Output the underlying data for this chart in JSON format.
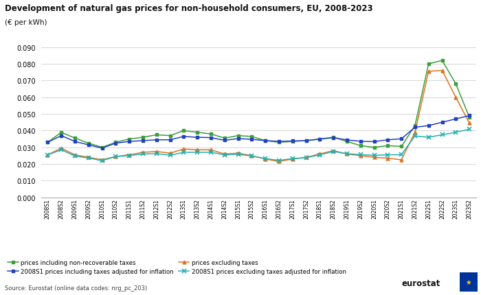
{
  "title": "Development of natural gas prices for non-household consumers, EU, 2008-2023",
  "subtitle": "(€ per kWh)",
  "source": "Source: Eurostat (online data codes: nrg_pc_203)",
  "x_labels": [
    "2008S1",
    "2008S2",
    "2009S1",
    "2009S2",
    "2010S1",
    "2010S2",
    "2011S1",
    "2011S2",
    "2012S1",
    "2012S2",
    "2013S1",
    "2013S2",
    "2014S1",
    "2014S2",
    "2015S1",
    "2015S2",
    "2016S1",
    "2016S2",
    "2017S1",
    "2017S2",
    "2018S1",
    "2018S2",
    "2019S1",
    "2019S2",
    "2020S1",
    "2020S2",
    "2021S1",
    "2021S2",
    "2022S1",
    "2022S2",
    "2023S1",
    "2023S2"
  ],
  "prices_incl_taxes": [
    0.033,
    0.039,
    0.0355,
    0.0325,
    0.03,
    0.033,
    0.035,
    0.036,
    0.0375,
    0.037,
    0.04,
    0.039,
    0.038,
    0.0355,
    0.037,
    0.0365,
    0.034,
    0.033,
    0.0335,
    0.034,
    0.035,
    0.036,
    0.0335,
    0.031,
    0.03,
    0.031,
    0.0305,
    0.043,
    0.08,
    0.082,
    0.068,
    0.048
  ],
  "prices_excl_taxes": [
    0.0255,
    0.0295,
    0.0255,
    0.024,
    0.0225,
    0.0245,
    0.0255,
    0.027,
    0.0275,
    0.0265,
    0.029,
    0.0285,
    0.0285,
    0.026,
    0.0265,
    0.025,
    0.023,
    0.0215,
    0.023,
    0.024,
    0.026,
    0.028,
    0.026,
    0.025,
    0.024,
    0.0235,
    0.0225,
    0.039,
    0.0755,
    0.076,
    0.06,
    0.0445
  ],
  "prices_incl_taxes_adj": [
    0.033,
    0.037,
    0.0335,
    0.0315,
    0.0295,
    0.0325,
    0.0335,
    0.034,
    0.0345,
    0.0345,
    0.0365,
    0.036,
    0.0358,
    0.0342,
    0.0352,
    0.0348,
    0.034,
    0.0336,
    0.0338,
    0.034,
    0.0349,
    0.0358,
    0.0344,
    0.0336,
    0.0334,
    0.0345,
    0.0351,
    0.042,
    0.043,
    0.045,
    0.047,
    0.049
  ],
  "prices_excl_taxes_adj": [
    0.0255,
    0.0285,
    0.0248,
    0.0236,
    0.022,
    0.0245,
    0.025,
    0.026,
    0.0262,
    0.0253,
    0.027,
    0.027,
    0.027,
    0.0255,
    0.0258,
    0.0248,
    0.0232,
    0.0222,
    0.0232,
    0.0238,
    0.0255,
    0.0275,
    0.0262,
    0.0256,
    0.0252,
    0.0255,
    0.0256,
    0.0368,
    0.036,
    0.0375,
    0.039,
    0.0408
  ],
  "color_incl_taxes": "#3a9e3a",
  "color_excl_taxes": "#e07020",
  "color_incl_taxes_adj": "#2040c0",
  "color_excl_taxes_adj": "#20b0b0",
  "ylim": [
    0.0,
    0.1
  ],
  "yticks": [
    0.0,
    0.01,
    0.02,
    0.03,
    0.04,
    0.05,
    0.06,
    0.07,
    0.08,
    0.09
  ],
  "legend_incl_taxes": "prices including non-recoverable taxes",
  "legend_excl_taxes": "prices excluding taxes",
  "legend_incl_taxes_adj": "2008S1 prices including taxes adjusted for inflation",
  "legend_excl_taxes_adj": "2008S1 prices excluding taxes adjusted for inflation",
  "bg_color": "#ffffff",
  "grid_color": "#d0d0d0"
}
